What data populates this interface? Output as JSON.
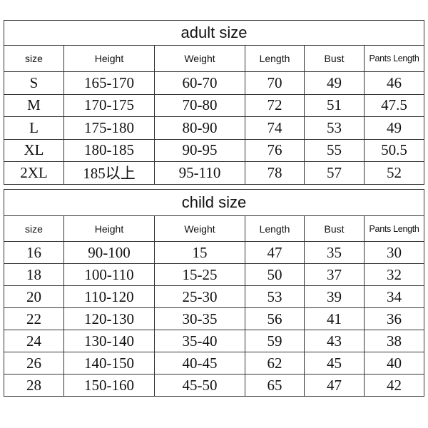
{
  "adult": {
    "title": "adult size",
    "headers": [
      "size",
      "Height",
      "Weight",
      "Length",
      "Bust",
      "Pants Length"
    ],
    "rows": [
      [
        "S",
        "165-170",
        "60-70",
        "70",
        "49",
        "46"
      ],
      [
        "M",
        "170-175",
        "70-80",
        "72",
        "51",
        "47.5"
      ],
      [
        "L",
        "175-180",
        "80-90",
        "74",
        "53",
        "49"
      ],
      [
        "XL",
        "180-185",
        "90-95",
        "76",
        "55",
        "50.5"
      ],
      [
        "2XL",
        "185以上",
        "95-110",
        "78",
        "57",
        "52"
      ]
    ]
  },
  "child": {
    "title": "child size",
    "headers": [
      "size",
      "Height",
      "Weight",
      "Length",
      "Bust",
      "Pants Length"
    ],
    "rows": [
      [
        "16",
        "90-100",
        "15",
        "47",
        "35",
        "30"
      ],
      [
        "18",
        "100-110",
        "15-25",
        "50",
        "37",
        "32"
      ],
      [
        "20",
        "110-120",
        "25-30",
        "53",
        "39",
        "34"
      ],
      [
        "22",
        "120-130",
        "30-35",
        "56",
        "41",
        "36"
      ],
      [
        "24",
        "130-140",
        "35-40",
        "59",
        "43",
        "38"
      ],
      [
        "26",
        "140-150",
        "40-45",
        "62",
        "45",
        "40"
      ],
      [
        "28",
        "150-160",
        "45-50",
        "65",
        "47",
        "42"
      ]
    ]
  }
}
